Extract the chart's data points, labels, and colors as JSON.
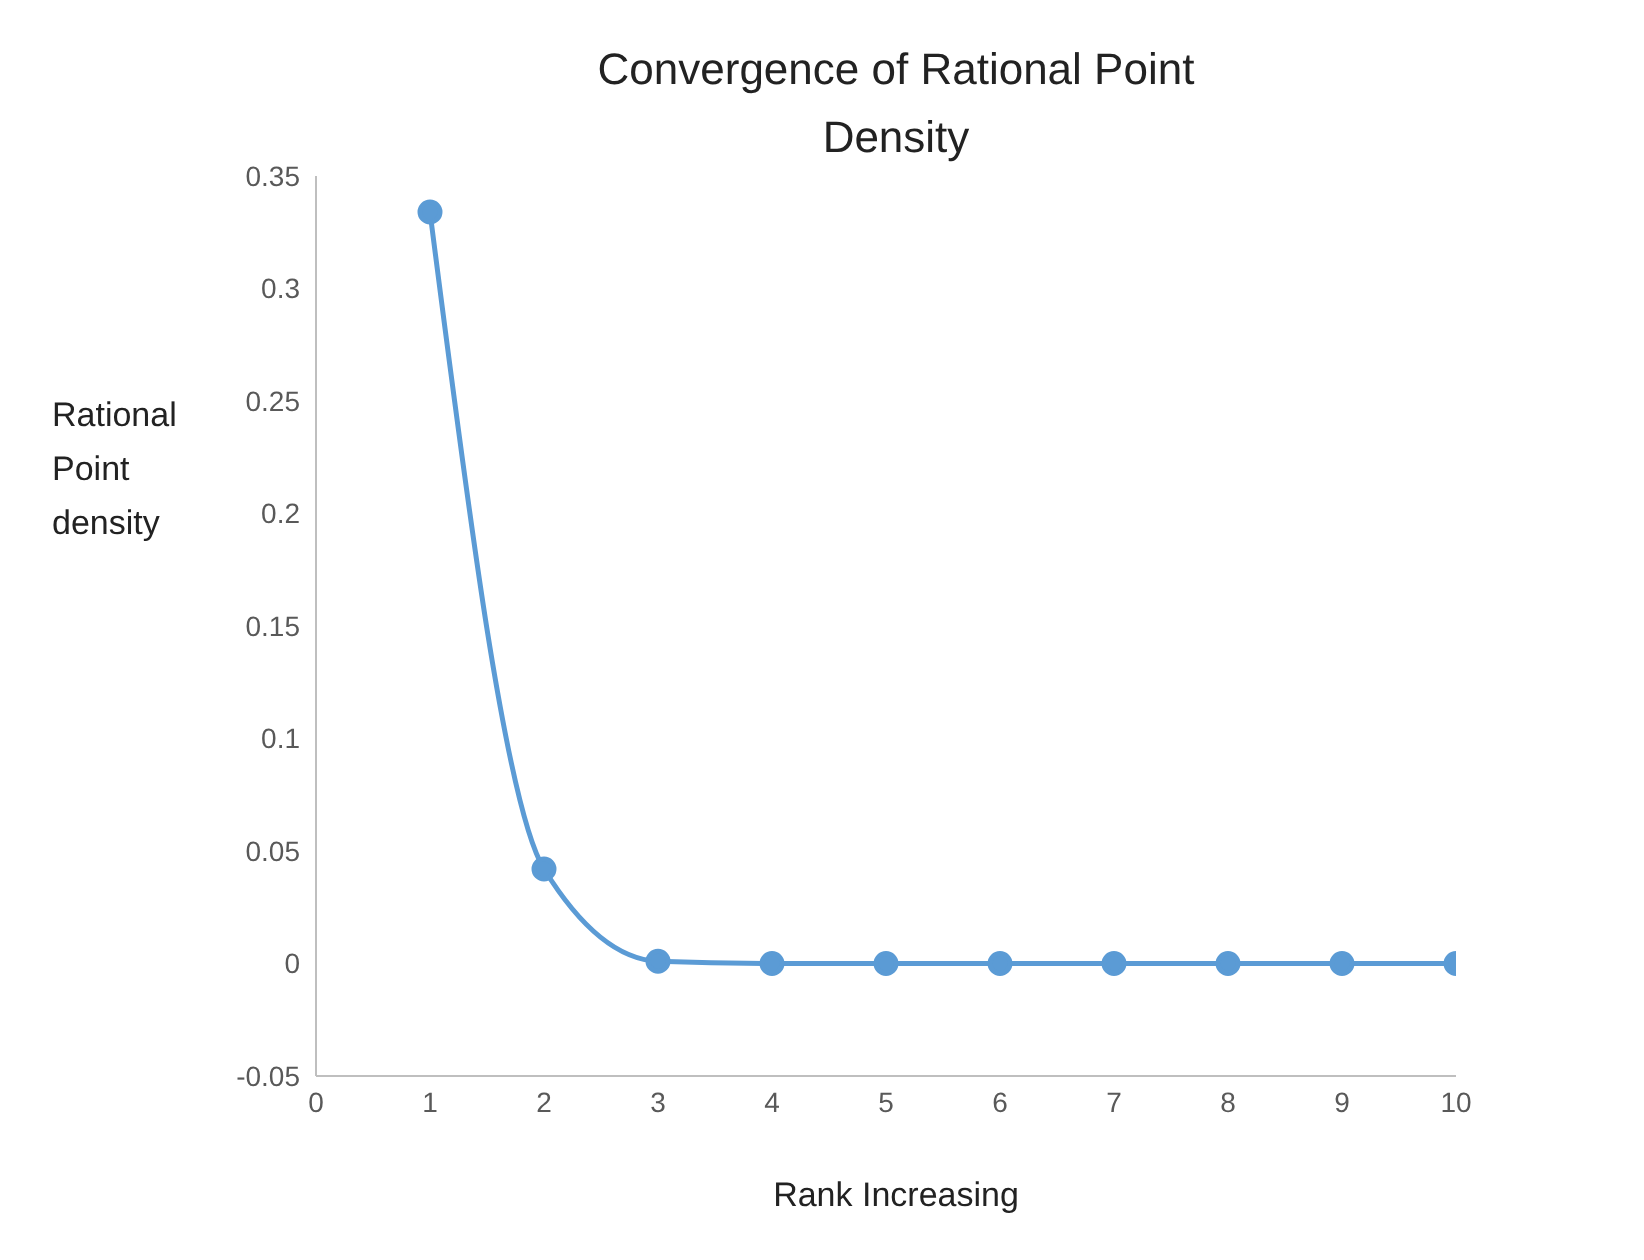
{
  "chart_data": {
    "type": "line",
    "title": "Convergence of Rational Point Density",
    "xlabel": "Rank Increasing",
    "ylabel": "Rational Point density",
    "x": [
      1,
      2,
      3,
      4,
      5,
      6,
      7,
      8,
      9,
      10
    ],
    "series": [
      {
        "color": "#5b9bd5",
        "values": [
          0.334,
          0.042,
          0.001,
          0,
          0,
          0,
          0,
          0,
          0,
          0
        ]
      }
    ],
    "xlim": [
      0,
      10
    ],
    "xticks": [
      0,
      1,
      2,
      3,
      4,
      5,
      6,
      7,
      8,
      9,
      10
    ],
    "ylim": [
      -0.05,
      0.35
    ],
    "yticks": [
      -0.05,
      0,
      0.05,
      0.1,
      0.15,
      0.2,
      0.25,
      0.3,
      0.35
    ],
    "grid": false,
    "legend": false,
    "marker": "circle",
    "line_style": "solid"
  }
}
